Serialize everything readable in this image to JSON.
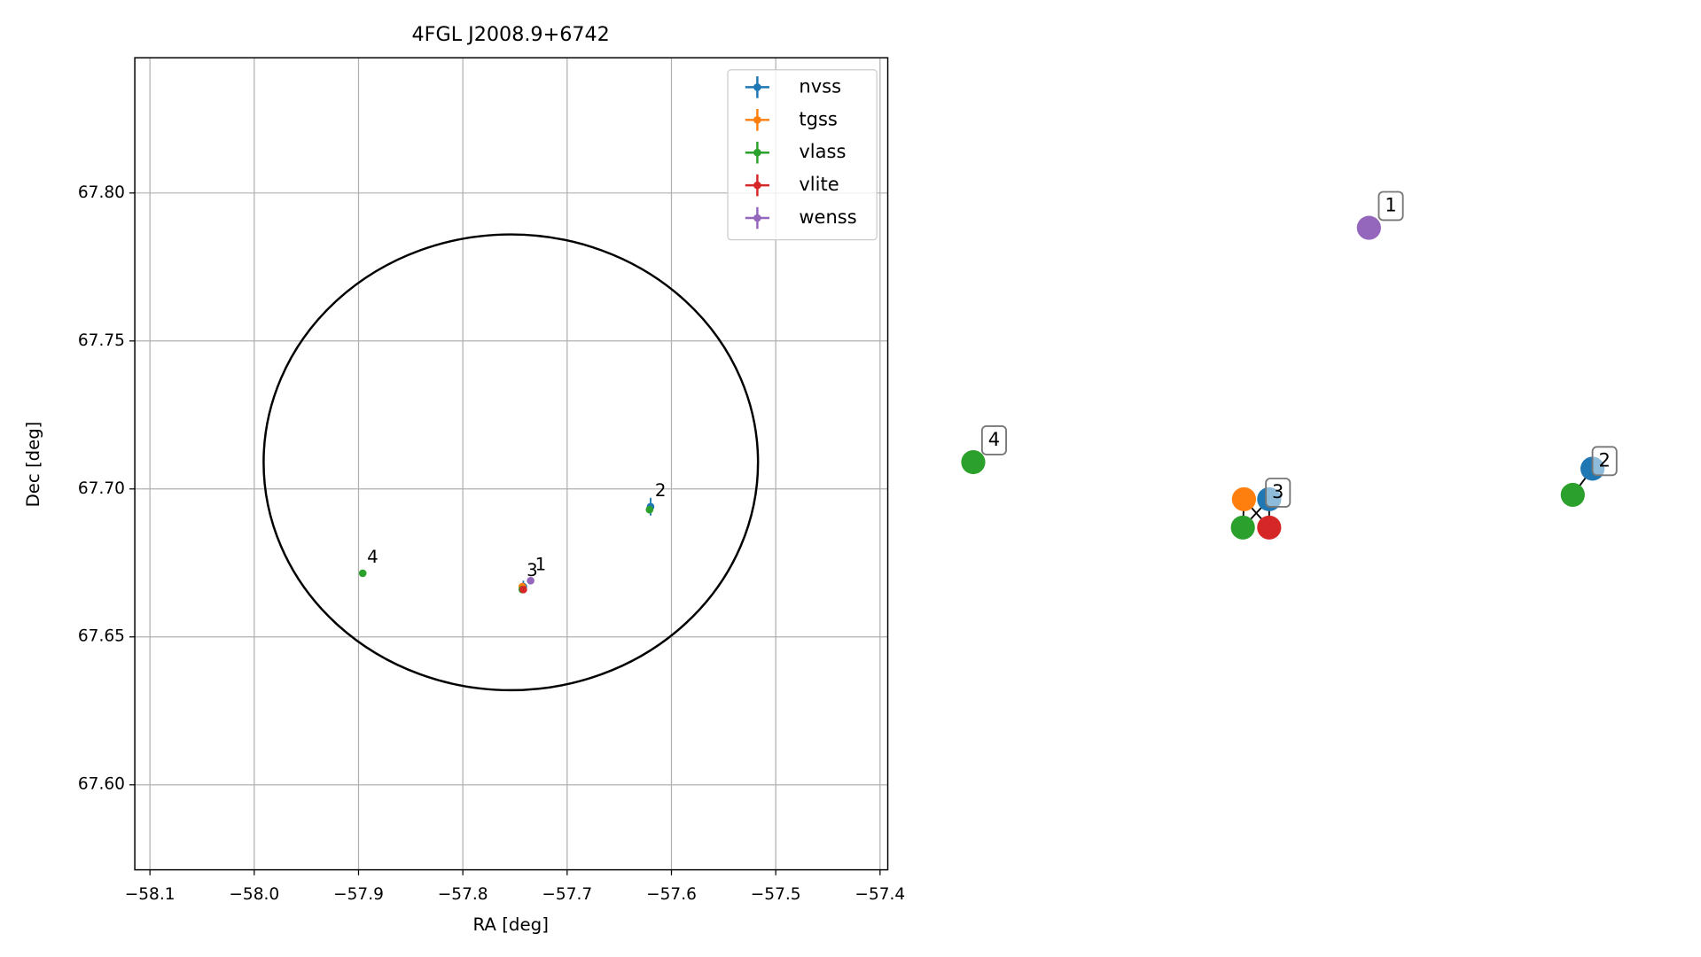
{
  "chart_data": [
    {
      "type": "scatter",
      "title": "4FGL J2008.9+6742",
      "xlabel": "RA [deg]",
      "ylabel": "Dec [deg]",
      "xlim": [
        -58.1145,
        -57.3926
      ],
      "ylim": [
        67.5713,
        67.8457
      ],
      "xticks": [
        {
          "value": -58.1,
          "label": "−58.1"
        },
        {
          "value": -58.0,
          "label": "−58.0"
        },
        {
          "value": -57.9,
          "label": "−57.9"
        },
        {
          "value": -57.8,
          "label": "−57.8"
        },
        {
          "value": -57.7,
          "label": "−57.7"
        },
        {
          "value": -57.6,
          "label": "−57.6"
        },
        {
          "value": -57.5,
          "label": "−57.5"
        },
        {
          "value": -57.4,
          "label": "−57.4"
        }
      ],
      "yticks": [
        {
          "value": 67.6,
          "label": "67.60"
        },
        {
          "value": 67.65,
          "label": "67.65"
        },
        {
          "value": 67.7,
          "label": "67.70"
        },
        {
          "value": 67.75,
          "label": "67.75"
        },
        {
          "value": 67.8,
          "label": "67.80"
        }
      ],
      "grid": true,
      "legend": "upper right",
      "series": [
        {
          "name": "nvss",
          "color": "#1f77b4",
          "x": [
            -57.62,
            -57.742
          ],
          "y": [
            67.694,
            67.667
          ],
          "yerr": [
            0.003,
            0.002
          ]
        },
        {
          "name": "tgss",
          "color": "#ff7f0e",
          "x": [
            -57.743
          ],
          "y": [
            67.667
          ]
        },
        {
          "name": "vlass",
          "color": "#2ca02c",
          "x": [
            -57.621,
            -57.896,
            -57.743
          ],
          "y": [
            67.693,
            67.6715,
            67.666
          ]
        },
        {
          "name": "vlite",
          "color": "#d62728",
          "x": [
            -57.742
          ],
          "y": [
            67.666
          ]
        },
        {
          "name": "wenss",
          "color": "#9467bd",
          "x": [
            -57.735
          ],
          "y": [
            67.669
          ]
        }
      ],
      "annotations": [
        {
          "text": "1",
          "x": -57.735,
          "y": 67.669
        },
        {
          "text": "2",
          "x": -57.62,
          "y": 67.694
        },
        {
          "text": "3",
          "x": -57.743,
          "y": 67.667
        },
        {
          "text": "4",
          "x": -57.896,
          "y": 67.6715
        }
      ],
      "ellipse": {
        "x": -57.754,
        "y": 67.709,
        "width": 0.474,
        "height": 0.154,
        "color": "#000000"
      }
    },
    {
      "type": "graph",
      "groups": [
        {
          "label": "1",
          "colors": [
            "#9467bd"
          ]
        },
        {
          "label": "2",
          "colors": [
            "#2ca02c",
            "#1f77b4"
          ]
        },
        {
          "label": "3",
          "colors": [
            "#ff7f0e",
            "#1f77b4",
            "#2ca02c",
            "#d62728"
          ]
        },
        {
          "label": "4",
          "colors": [
            "#2ca02c"
          ]
        }
      ]
    }
  ]
}
